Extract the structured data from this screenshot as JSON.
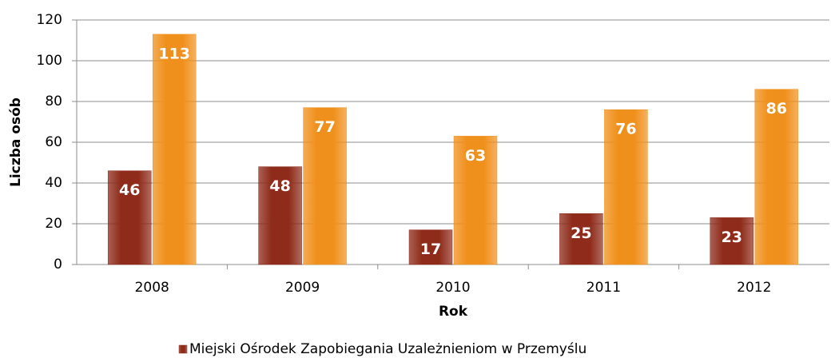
{
  "chart_data": {
    "type": "bar",
    "categories": [
      "2008",
      "2009",
      "2010",
      "2011",
      "2012"
    ],
    "series": [
      {
        "name": "Miejski Ośrodek Zapobiegania Uzależnieniom w Przemyślu",
        "color": "#8e2b1a",
        "values": [
          46,
          48,
          17,
          25,
          23
        ]
      },
      {
        "color": "#f0901c",
        "values": [
          113,
          77,
          63,
          76,
          86
        ]
      }
    ],
    "xlabel": "Rok",
    "ylabel": "Liczba osób",
    "ylim": [
      0,
      120
    ],
    "yticks": [
      0,
      20,
      40,
      60,
      80,
      100,
      120
    ],
    "grid": true,
    "legend": "bottom"
  }
}
